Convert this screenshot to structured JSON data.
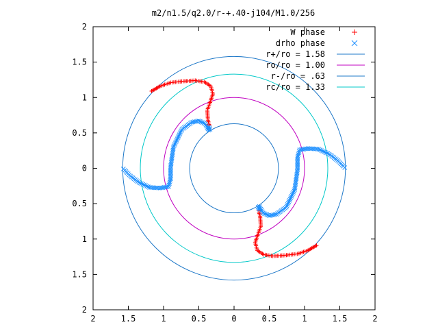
{
  "chart_data": {
    "type": "scatter",
    "title": "m2/n1.5/q2.0/r-+.40-j104/M1.0/256",
    "xlabel": "",
    "ylabel": "",
    "xlim": [
      -2,
      2
    ],
    "ylim": [
      -2,
      2
    ],
    "x_tick_values": [
      -2,
      -1.5,
      -1,
      -0.5,
      0,
      0.5,
      1,
      1.5,
      2
    ],
    "x_tick_labels": [
      "2",
      "1.5",
      "1",
      "0.5",
      "0",
      "0.5",
      "1",
      "1.5",
      "2"
    ],
    "y_tick_values": [
      2,
      1.5,
      1,
      0.5,
      0,
      -0.5,
      -1,
      -1.5,
      -2
    ],
    "y_tick_labels": [
      "2",
      "1.5",
      "1",
      "0.5",
      "0",
      "0.5",
      "1",
      "1.5",
      "2"
    ],
    "grid": false,
    "legend_position": "top-right",
    "legend": [
      {
        "label": "W phase",
        "marker": "plus",
        "color": "#ff0000"
      },
      {
        "label": "drho phase",
        "marker": "cross",
        "color": "#1e90ff"
      },
      {
        "label": "r+/ro = 1.58",
        "marker": "line",
        "color": "#1e78c8"
      },
      {
        "label": "ro/ro = 1.00",
        "marker": "line",
        "color": "#c000c0"
      },
      {
        "label": "r-/ro = .63",
        "marker": "line",
        "color": "#1e78c8"
      },
      {
        "label": "rc/ro = 1.33",
        "marker": "line",
        "color": "#00c8c8"
      }
    ],
    "circles": [
      {
        "name": "r+/ro = 1.58",
        "radius": 1.58,
        "color": "#1e78c8"
      },
      {
        "name": "ro/ro = 1.00",
        "radius": 1.0,
        "color": "#c000c0"
      },
      {
        "name": "r-/ro = .63",
        "radius": 0.63,
        "color": "#1e78c8"
      },
      {
        "name": "rc/ro = 1.33",
        "radius": 1.33,
        "color": "#00c8c8"
      }
    ],
    "series": [
      {
        "name": "W phase",
        "color": "#ff0000",
        "marker": "plus",
        "arms": [
          {
            "points": [
              [
                -1.17,
                1.09
              ],
              [
                -1.05,
                1.16
              ],
              [
                -0.9,
                1.21
              ],
              [
                -0.72,
                1.23
              ],
              [
                -0.55,
                1.24
              ],
              [
                -0.42,
                1.22
              ],
              [
                -0.33,
                1.16
              ],
              [
                -0.3,
                1.05
              ],
              [
                -0.34,
                0.93
              ],
              [
                -0.38,
                0.82
              ],
              [
                -0.37,
                0.68
              ],
              [
                -0.35,
                0.6
              ]
            ]
          },
          {
            "points": [
              [
                1.17,
                -1.09
              ],
              [
                1.05,
                -1.16
              ],
              [
                0.9,
                -1.21
              ],
              [
                0.72,
                -1.23
              ],
              [
                0.55,
                -1.24
              ],
              [
                0.42,
                -1.22
              ],
              [
                0.33,
                -1.16
              ],
              [
                0.3,
                -1.05
              ],
              [
                0.34,
                -0.93
              ],
              [
                0.38,
                -0.82
              ],
              [
                0.37,
                -0.68
              ],
              [
                0.35,
                -0.6
              ]
            ]
          }
        ]
      },
      {
        "name": "drho phase",
        "color": "#1e90ff",
        "marker": "cross",
        "arms": [
          {
            "points": [
              [
                0.36,
                -0.58
              ],
              [
                0.34,
                -0.55
              ],
              [
                0.36,
                -0.54
              ],
              [
                0.41,
                -0.63
              ],
              [
                0.5,
                -0.67
              ],
              [
                0.6,
                -0.65
              ],
              [
                0.74,
                -0.55
              ],
              [
                0.86,
                -0.3
              ],
              [
                0.9,
                -0.02
              ],
              [
                0.9,
                0.15
              ],
              [
                0.93,
                0.26
              ],
              [
                1.05,
                0.28
              ],
              [
                1.2,
                0.27
              ],
              [
                1.35,
                0.2
              ],
              [
                1.47,
                0.11
              ],
              [
                1.55,
                0.03
              ],
              [
                1.57,
                0.01
              ]
            ]
          },
          {
            "points": [
              [
                -1.57,
                -0.01
              ],
              [
                -1.55,
                -0.03
              ],
              [
                -1.47,
                -0.11
              ],
              [
                -1.35,
                -0.2
              ],
              [
                -1.2,
                -0.27
              ],
              [
                -1.05,
                -0.28
              ],
              [
                -0.93,
                -0.26
              ],
              [
                -0.9,
                -0.15
              ],
              [
                -0.9,
                0.02
              ],
              [
                -0.86,
                0.3
              ],
              [
                -0.74,
                0.55
              ],
              [
                -0.6,
                0.65
              ],
              [
                -0.5,
                0.67
              ],
              [
                -0.41,
                0.63
              ],
              [
                -0.36,
                0.54
              ],
              [
                -0.34,
                0.55
              ],
              [
                -0.36,
                0.58
              ]
            ]
          }
        ]
      }
    ]
  }
}
